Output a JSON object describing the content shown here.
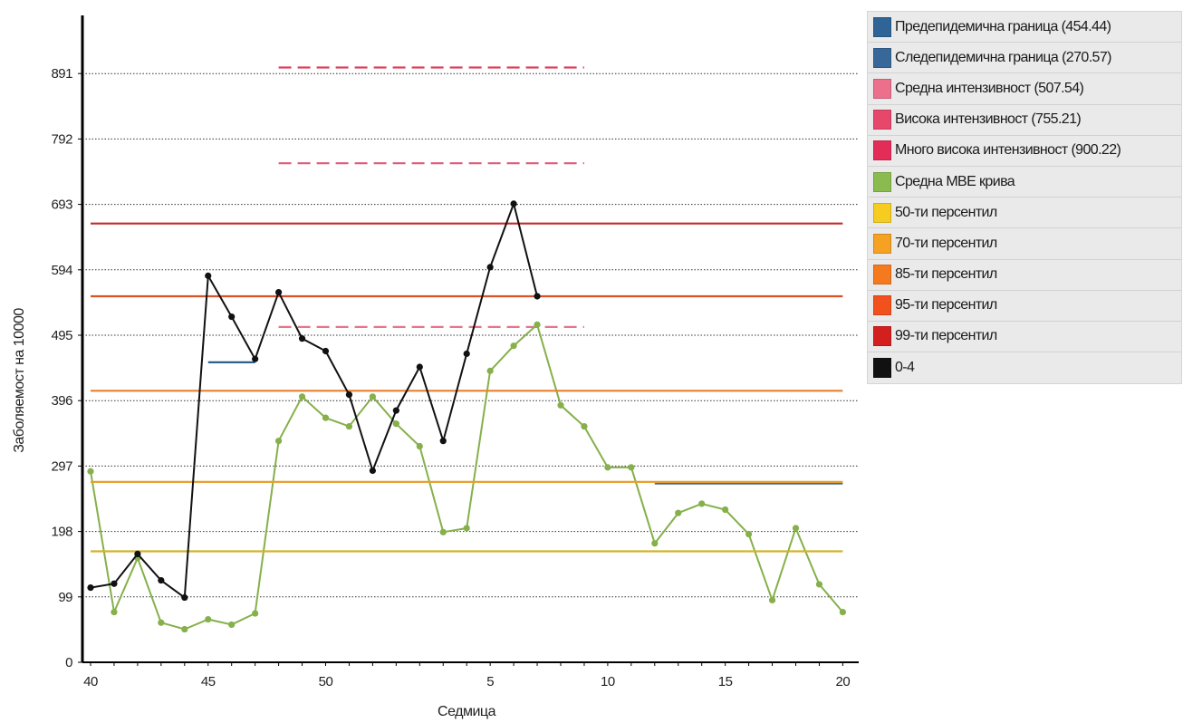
{
  "chart_data": {
    "type": "line",
    "title": "",
    "xlabel": "Седмица",
    "ylabel": "Заболяемост на 10000",
    "ylim": [
      0,
      990
    ],
    "yticks": [
      0,
      99,
      198,
      297,
      396,
      495,
      594,
      693,
      792,
      891
    ],
    "grid": true,
    "legend_position": "right",
    "x_tick_labels": [
      "40",
      "45",
      "50",
      "5",
      "10",
      "15",
      "20"
    ],
    "weeks": [
      "40",
      "41",
      "42",
      "43",
      "44",
      "45",
      "46",
      "47",
      "48",
      "49",
      "50",
      "51",
      "52",
      "1",
      "2",
      "3",
      "4",
      "5",
      "6",
      "7",
      "8",
      "9",
      "10",
      "11",
      "12",
      "13",
      "14",
      "15",
      "16",
      "17",
      "18",
      "19",
      "20"
    ],
    "series": [
      {
        "name": "Предепидемична граница (454.44)",
        "color": "#2d5f8e",
        "style": "solid",
        "values": [
          null,
          null,
          null,
          null,
          null,
          454,
          454,
          454,
          null,
          null,
          null,
          null,
          null,
          null,
          null,
          null,
          null,
          null,
          null,
          null,
          null,
          null,
          null,
          null,
          null,
          null,
          null,
          null,
          null,
          null,
          null,
          null,
          null
        ]
      },
      {
        "name": "Следепидемична граница (270.57)",
        "color": "#3f6f9a",
        "style": "solid",
        "values": [
          null,
          null,
          null,
          null,
          null,
          null,
          null,
          null,
          null,
          null,
          null,
          null,
          null,
          null,
          null,
          null,
          null,
          null,
          null,
          null,
          null,
          null,
          null,
          null,
          270.57,
          270.57,
          270.57,
          270.57,
          270.57,
          270.57,
          270.57,
          270.57,
          270.57
        ]
      },
      {
        "name": "Средна интензивност (507.54)",
        "color": "#e8738e",
        "style": "dashed",
        "values": [
          null,
          null,
          null,
          null,
          null,
          null,
          null,
          null,
          507.54,
          507.54,
          507.54,
          507.54,
          507.54,
          507.54,
          507.54,
          507.54,
          507.54,
          507.54,
          507.54,
          507.54,
          507.54,
          507.54,
          null,
          null,
          null,
          null,
          null,
          null,
          null,
          null,
          null,
          null,
          null
        ]
      },
      {
        "name": "Висока интензивност (755.21)",
        "color": "#de5a78",
        "style": "dashed",
        "values": [
          null,
          null,
          null,
          null,
          null,
          null,
          null,
          null,
          755.21,
          755.21,
          755.21,
          755.21,
          755.21,
          755.21,
          755.21,
          755.21,
          755.21,
          755.21,
          755.21,
          755.21,
          755.21,
          755.21,
          null,
          null,
          null,
          null,
          null,
          null,
          null,
          null,
          null,
          null,
          null
        ]
      },
      {
        "name": "Много висока интензивност (900.22)",
        "color": "#d9435f",
        "style": "dashed",
        "values": [
          null,
          null,
          null,
          null,
          null,
          null,
          null,
          null,
          900.22,
          900.22,
          900.22,
          900.22,
          900.22,
          900.22,
          900.22,
          900.22,
          900.22,
          900.22,
          900.22,
          900.22,
          900.22,
          900.22,
          null,
          null,
          null,
          null,
          null,
          null,
          null,
          null,
          null,
          null,
          null
        ]
      },
      {
        "name": "Средна МВЕ крива",
        "color": "#85b04a",
        "style": "solid",
        "markers": true,
        "values": [
          289,
          76,
          158,
          60,
          50,
          65,
          57,
          74,
          335,
          402,
          370,
          357,
          402,
          361,
          327,
          197,
          203,
          441,
          479,
          511,
          389,
          357,
          295,
          295,
          180,
          226,
          240,
          231,
          194,
          94,
          203,
          118,
          76
        ]
      },
      {
        "name": "50-ти персентил",
        "color": "#d1b32c",
        "style": "solid",
        "values": [
          168,
          168,
          168,
          168,
          168,
          168,
          168,
          168,
          168,
          168,
          168,
          168,
          168,
          168,
          168,
          168,
          168,
          168,
          168,
          168,
          168,
          168,
          168,
          168,
          168,
          168,
          168,
          168,
          168,
          168,
          168,
          168,
          168
        ]
      },
      {
        "name": "70-ти персентил",
        "color": "#e8a030",
        "style": "solid",
        "values": [
          273,
          273,
          273,
          273,
          273,
          273,
          273,
          273,
          273,
          273,
          273,
          273,
          273,
          273,
          273,
          273,
          273,
          273,
          273,
          273,
          273,
          273,
          273,
          273,
          273,
          273,
          273,
          273,
          273,
          273,
          273,
          273,
          273
        ]
      },
      {
        "name": "85-ти персентил",
        "color": "#e8802f",
        "style": "solid",
        "values": [
          411,
          411,
          411,
          411,
          411,
          411,
          411,
          411,
          411,
          411,
          411,
          411,
          411,
          411,
          411,
          411,
          411,
          411,
          411,
          411,
          411,
          411,
          411,
          411,
          411,
          411,
          411,
          411,
          411,
          411,
          411,
          411,
          411
        ]
      },
      {
        "name": "95-ти персентил",
        "color": "#d8522a",
        "style": "solid",
        "values": [
          554,
          554,
          554,
          554,
          554,
          554,
          554,
          554,
          554,
          554,
          554,
          554,
          554,
          554,
          554,
          554,
          554,
          554,
          554,
          554,
          554,
          554,
          554,
          554,
          554,
          554,
          554,
          554,
          554,
          554,
          554,
          554,
          554
        ]
      },
      {
        "name": "99-ти персентил",
        "color": "#c42a2a",
        "style": "solid",
        "values": [
          664,
          664,
          664,
          664,
          664,
          664,
          664,
          664,
          664,
          664,
          664,
          664,
          664,
          664,
          664,
          664,
          664,
          664,
          664,
          664,
          664,
          664,
          664,
          664,
          664,
          664,
          664,
          664,
          664,
          664,
          664,
          664,
          664
        ]
      },
      {
        "name": "0-4",
        "color": "#111111",
        "style": "solid",
        "markers": true,
        "values": [
          113,
          119,
          164,
          124,
          98,
          585,
          523,
          459,
          560,
          490,
          471,
          405,
          290,
          381,
          447,
          335,
          467,
          598,
          694,
          554,
          null,
          null,
          null,
          null,
          null,
          null,
          null,
          null,
          null,
          null,
          null,
          null,
          null
        ]
      }
    ]
  },
  "legend": {
    "items": [
      {
        "label": "Предепидемична граница (454.44)",
        "color": "#2e6496"
      },
      {
        "label": "Следепидемична граница (270.57)",
        "color": "#38689a"
      },
      {
        "label": "Средна интензивност (507.54)",
        "color": "#ec6f8c"
      },
      {
        "label": "Висока интензивност (755.21)",
        "color": "#e8476c"
      },
      {
        "label": "Много висока интензивност (900.22)",
        "color": "#e42c58"
      },
      {
        "label": "Средна МВЕ крива",
        "color": "#8bbb4f"
      },
      {
        "label": "50-ти персентил",
        "color": "#f5cc1f"
      },
      {
        "label": "70-ти персентил",
        "color": "#f5a223"
      },
      {
        "label": "85-ти персентил",
        "color": "#f57a1f"
      },
      {
        "label": "95-ти персентил",
        "color": "#f2501c"
      },
      {
        "label": "99-ти персентил",
        "color": "#d41f1f"
      },
      {
        "label": "0-4",
        "color": "#111111"
      }
    ]
  }
}
